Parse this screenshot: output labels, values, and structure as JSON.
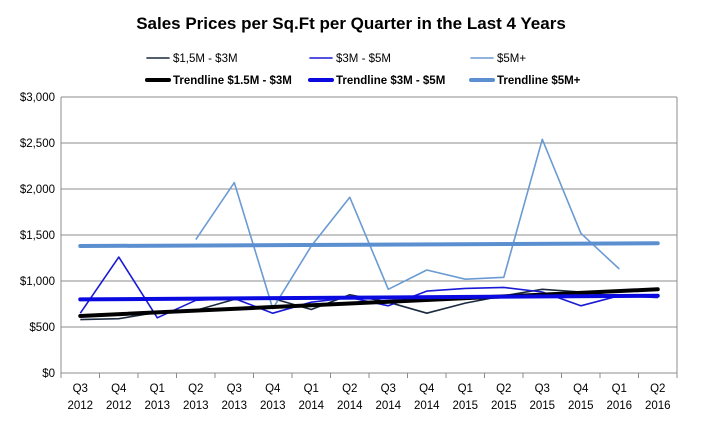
{
  "chart_data": {
    "type": "line",
    "title": "Sales Prices per Sq.Ft per Quarter in the Last 4 Years",
    "xlabel": "",
    "ylabel": "",
    "ylim": [
      0,
      3000
    ],
    "yticks": [
      0,
      500,
      1000,
      1500,
      2000,
      2500,
      3000
    ],
    "ytick_labels": [
      "$0",
      "$500",
      "$1,000",
      "$1,500",
      "$2,000",
      "$2,500",
      "$3,000"
    ],
    "grid": true,
    "legend_position": "top",
    "categories": [
      [
        "Q3",
        "2012"
      ],
      [
        "Q4",
        "2012"
      ],
      [
        "Q1",
        "2013"
      ],
      [
        "Q2",
        "2013"
      ],
      [
        "Q3",
        "2013"
      ],
      [
        "Q4",
        "2013"
      ],
      [
        "Q1",
        "2014"
      ],
      [
        "Q2",
        "2014"
      ],
      [
        "Q3",
        "2014"
      ],
      [
        "Q4",
        "2014"
      ],
      [
        "Q1",
        "2015"
      ],
      [
        "Q2",
        "2015"
      ],
      [
        "Q3",
        "2015"
      ],
      [
        "Q4",
        "2015"
      ],
      [
        "Q1",
        "2016"
      ],
      [
        "Q2",
        "2016"
      ]
    ],
    "series": [
      {
        "name": "$1,5M - $3M",
        "color": "#1b2a3f",
        "values": [
          580,
          590,
          660,
          680,
          800,
          810,
          690,
          850,
          770,
          650,
          760,
          840,
          910,
          880,
          830,
          840
        ]
      },
      {
        "name": "$3M - $5M",
        "color": "#1a1ad6",
        "values": [
          650,
          1260,
          600,
          790,
          810,
          650,
          770,
          820,
          730,
          890,
          920,
          930,
          880,
          730,
          840,
          820
        ]
      },
      {
        "name": "$5M+",
        "color": "#6b9bd2",
        "values": [
          null,
          null,
          null,
          1450,
          2070,
          700,
          1380,
          1910,
          910,
          1120,
          1020,
          1040,
          2540,
          1520,
          1130,
          null
        ]
      }
    ],
    "trendlines": [
      {
        "name": "Trendline $1.5M - $3M",
        "color": "#000000",
        "start": 620,
        "end": 910
      },
      {
        "name": "Trendline $3M - $5M",
        "color": "#0a0ae0",
        "start": 800,
        "end": 840
      },
      {
        "name": "Trendline $5M+",
        "color": "#5b8fd0",
        "start": 1380,
        "end": 1410
      }
    ]
  }
}
